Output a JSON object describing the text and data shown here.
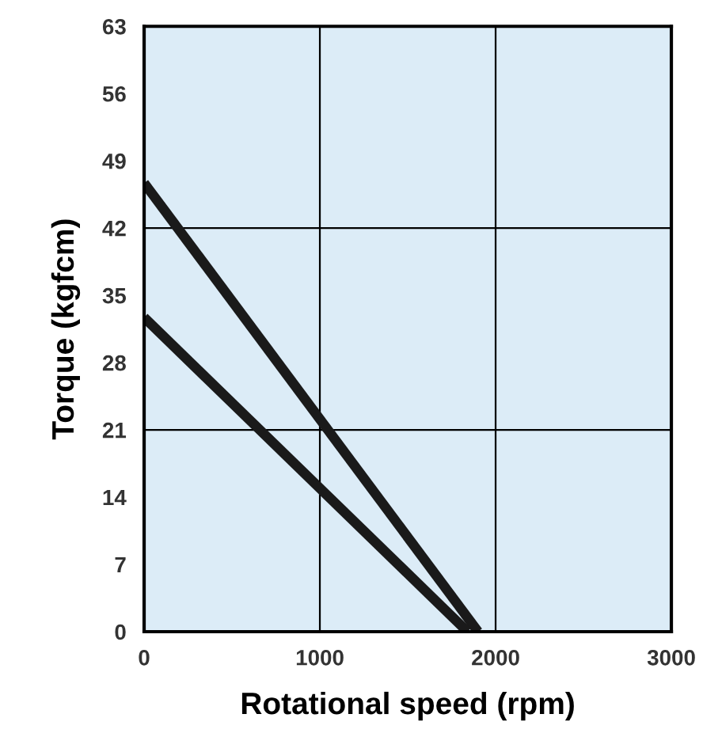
{
  "chart_data": {
    "type": "line",
    "xlabel": "Rotational speed (rpm)",
    "ylabel": "Torque (kgfcm)",
    "series": [
      {
        "color": "#1a1a1a",
        "x": [
          0,
          1900
        ],
        "values": [
          46.7,
          0
        ]
      },
      {
        "color": "#1a1a1a",
        "x": [
          0,
          1840
        ],
        "values": [
          32.7,
          0
        ]
      }
    ],
    "xlim": [
      0,
      3000
    ],
    "xticks": [
      0,
      1000,
      2000,
      3000
    ],
    "ylim": [
      0,
      63
    ],
    "yticks": [
      0,
      7,
      14,
      21,
      28,
      35,
      42,
      49,
      56,
      63
    ],
    "ref_lines": [
      {
        "axis": "x",
        "value": 1000,
        "color": "#000000"
      },
      {
        "axis": "x",
        "value": 2000,
        "color": "#000000"
      },
      {
        "axis": "y",
        "value": 21,
        "color": "#000000"
      },
      {
        "axis": "y",
        "value": 42,
        "color": "#000000"
      }
    ],
    "line_style": "solid",
    "marker": "none",
    "grid": false,
    "legend": false
  }
}
